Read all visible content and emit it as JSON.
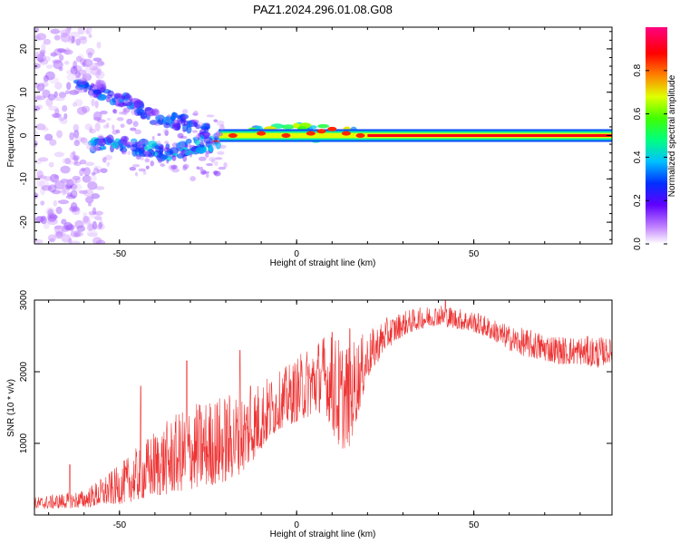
{
  "title": "PAZ1.2024.296.01.08.G08",
  "chart_data": [
    {
      "type": "heatmap",
      "xlabel": "Height of straight line (km)",
      "ylabel": "Frequency (Hz)",
      "xlim": [
        -74,
        89
      ],
      "ylim": [
        -25,
        25
      ],
      "x_ticks": [
        -50,
        0,
        50
      ],
      "y_ticks": [
        -20,
        -10,
        0,
        10,
        20
      ],
      "colorbar": {
        "label": "Normalized spectral amplitude",
        "range": [
          0.0,
          1.0
        ],
        "ticks": [
          "0.0",
          "0.2",
          "0.4",
          "0.6",
          "0.8"
        ]
      },
      "features": [
        {
          "kind": "carrier",
          "frequency_hz": 0,
          "x_start": -22,
          "x_end": 89,
          "amplitude": 0.9
        },
        {
          "kind": "upper_branch",
          "points": [
            [
              -62,
              11
            ],
            [
              -55,
              10
            ],
            [
              -48,
              8
            ],
            [
              -40,
              4
            ],
            [
              -32,
              3
            ],
            [
              -25,
              1
            ]
          ],
          "amplitude": 0.25
        },
        {
          "kind": "lower_branch",
          "points": [
            [
              -58,
              -2
            ],
            [
              -50,
              -2
            ],
            [
              -43,
              -3
            ],
            [
              -35,
              -4
            ],
            [
              -28,
              -2
            ],
            [
              -22,
              -1.5
            ]
          ],
          "amplitude": 0.3
        },
        {
          "kind": "scatter_left",
          "x_range": [
            -74,
            -55
          ],
          "freq_range": [
            -25,
            25
          ],
          "amplitude": 0.1
        }
      ]
    },
    {
      "type": "line",
      "xlabel": "Height of straight line (km)",
      "ylabel": "SNR (10 * v/v)",
      "xlim": [
        -74,
        89
      ],
      "ylim": [
        0,
        3000
      ],
      "x_ticks": [
        -50,
        0,
        50
      ],
      "y_ticks": [
        1000,
        2000,
        3000
      ],
      "color": "#ee3333",
      "envelope": {
        "x": [
          -74,
          -60,
          -50,
          -40,
          -30,
          -20,
          -15,
          -10,
          -5,
          0,
          5,
          8,
          12,
          15,
          20,
          25,
          30,
          35,
          40,
          45,
          50,
          55,
          60,
          65,
          70,
          75,
          80,
          85,
          89
        ],
        "low": [
          80,
          100,
          150,
          250,
          350,
          450,
          600,
          900,
          1200,
          1300,
          1400,
          1450,
          900,
          950,
          1900,
          2300,
          2500,
          2600,
          2650,
          2600,
          2550,
          2450,
          2300,
          2200,
          2150,
          2100,
          2100,
          2050,
          2150
        ],
        "high": [
          250,
          350,
          700,
          1200,
          1550,
          1700,
          1750,
          1900,
          2000,
          2200,
          2450,
          2550,
          2500,
          2450,
          2550,
          2750,
          2850,
          2900,
          2950,
          2900,
          2850,
          2750,
          2650,
          2600,
          2550,
          2500,
          2500,
          2500,
          2450
        ],
        "spikes": [
          [
            -64,
            700
          ],
          [
            -44,
            1800
          ],
          [
            -31,
            2150
          ],
          [
            -16,
            2300
          ],
          [
            -13,
            1800
          ],
          [
            7,
            2000
          ],
          [
            10,
            2550
          ],
          [
            15,
            2600
          ],
          [
            42,
            3000
          ]
        ]
      }
    }
  ]
}
